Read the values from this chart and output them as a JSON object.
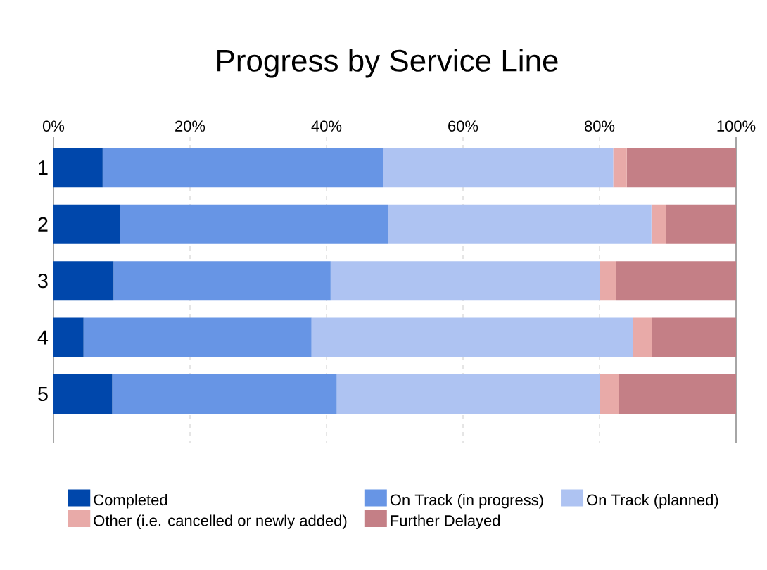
{
  "chart_data": {
    "type": "bar",
    "title": "Progress by Service Line",
    "orientation": "horizontal",
    "stacked": true,
    "categories": [
      "1",
      "2",
      "3",
      "4",
      "5"
    ],
    "series": [
      {
        "name": "Completed",
        "color": "#0047ab",
        "values": [
          7.2,
          9.7,
          8.8,
          4.4,
          8.6
        ]
      },
      {
        "name": "On Track (in progress)",
        "color": "#6795e5",
        "values": [
          41.1,
          39.3,
          31.8,
          33.4,
          32.9
        ]
      },
      {
        "name": "On Track (planned)",
        "color": "#aec3f2",
        "values": [
          33.7,
          38.6,
          39.5,
          47.1,
          38.6
        ]
      },
      {
        "name": "Other (i.e. cancelled or newly added)",
        "color": "#e8aaa8",
        "values": [
          2.0,
          2.1,
          2.3,
          2.8,
          2.7
        ]
      },
      {
        "name": "Further Delayed",
        "color": "#c47f86",
        "values": [
          16.0,
          10.3,
          17.6,
          12.3,
          17.2
        ]
      }
    ],
    "xlim": [
      0,
      100
    ],
    "xticks": [
      {
        "value": 0,
        "label": "0%"
      },
      {
        "value": 20,
        "label": "20%"
      },
      {
        "value": 40,
        "label": "40%"
      },
      {
        "value": 60,
        "label": "60%"
      },
      {
        "value": 80,
        "label": "80%"
      },
      {
        "value": 100,
        "label": "100%"
      }
    ],
    "grid": "x",
    "legend": "bottom"
  }
}
